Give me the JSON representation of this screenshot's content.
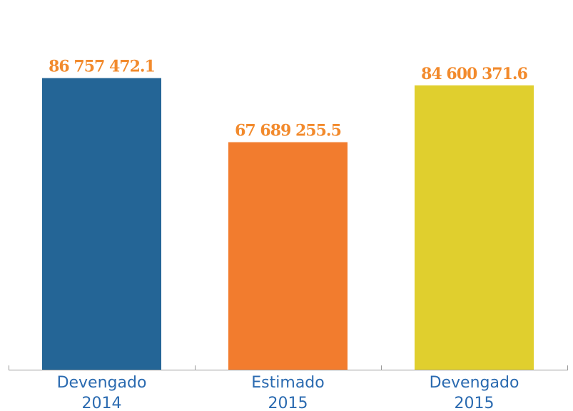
{
  "chart_data": {
    "type": "bar",
    "categories": [
      "Devengado 2014",
      "Estimado 2015",
      "Devengado 2015"
    ],
    "category_lines": [
      [
        "Devengado",
        "2014"
      ],
      [
        "Estimado",
        "2015"
      ],
      [
        "Devengado",
        "2015"
      ]
    ],
    "values": [
      86757472.1,
      67689255.5,
      84600371.6
    ],
    "value_labels": [
      "86 757 472.1",
      "67 689 255.5",
      "84 600 371.6"
    ],
    "bar_colors": [
      "#246596",
      "#f27c2e",
      "#e0cf2e"
    ],
    "value_label_color": "#f28a2c",
    "category_label_color": "#2a6ab0",
    "axis_color": "#999999",
    "ylim": [
      0,
      110000000
    ],
    "grid": false,
    "legend": "none",
    "title": "",
    "xlabel": "",
    "ylabel": ""
  }
}
